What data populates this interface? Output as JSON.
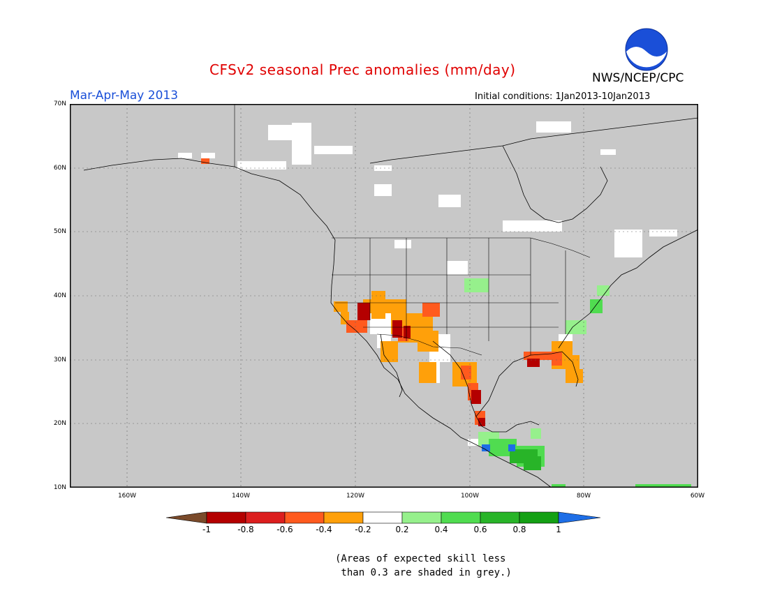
{
  "header": {
    "title": "CFSv2 seasonal Prec anomalies (mm/day)",
    "agency": "NWS/NCEP/CPC",
    "logo_text": "NOAA",
    "season": "Mar-Apr-May 2013",
    "initial_conditions": "Initial conditions: 1Jan2013-10Jan2013"
  },
  "map": {
    "lat_labels": [
      "70N",
      "60N",
      "50N",
      "40N",
      "30N",
      "20N",
      "10N"
    ],
    "lon_labels": [
      "160W",
      "140W",
      "120W",
      "100W",
      "80W",
      "60W"
    ],
    "background_color": "#c8c8c8"
  },
  "colorbar": {
    "tick_labels": [
      "-1",
      "-0.8",
      "-0.6",
      "-0.4",
      "-0.2",
      "0.2",
      "0.4",
      "0.6",
      "0.8",
      "1"
    ],
    "colors": [
      "#7a4a2a",
      "#b40000",
      "#dc1e1e",
      "#ff5a1e",
      "#ffa00a",
      "#ffffff",
      "#96f08c",
      "#50dc50",
      "#28b428",
      "#14a014",
      "#1e6ee6"
    ]
  },
  "note": "(Areas of expected skill less\n than 0.3 are shaded in grey.)"
}
